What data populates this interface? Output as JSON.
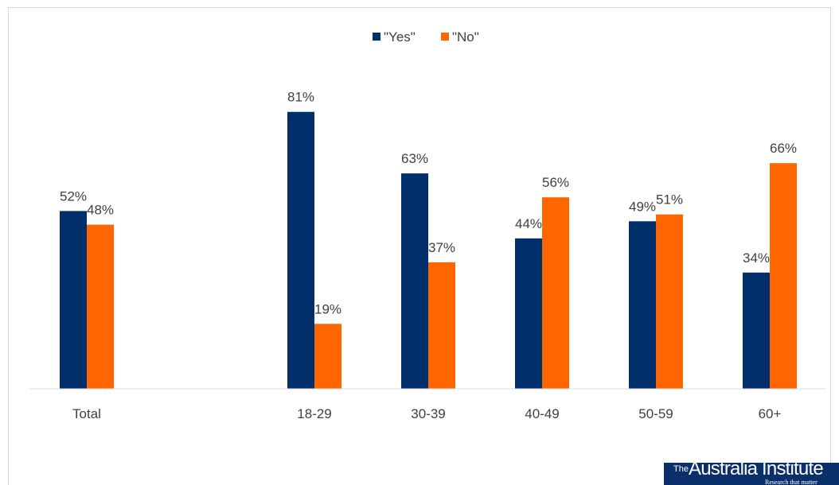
{
  "colors": {
    "yes": "#002f6c",
    "no": "#ff6600",
    "axis": "#d9d9d9",
    "text": "#404040",
    "logo_bg": "#0b2f6a"
  },
  "legend": {
    "position": "top-center"
  },
  "chart_data": {
    "type": "bar",
    "categories": [
      "Total",
      "",
      "18-29",
      "30-39",
      "40-49",
      "50-59",
      "60+"
    ],
    "series": [
      {
        "name": "\"Yes\"",
        "values": [
          52,
          null,
          81,
          63,
          44,
          49,
          34
        ],
        "color": "#002f6c"
      },
      {
        "name": "\"No\"",
        "values": [
          48,
          null,
          19,
          37,
          56,
          51,
          66
        ],
        "color": "#ff6600"
      }
    ],
    "data_labels": {
      "yes": [
        "52%",
        "",
        "81%",
        "63%",
        "44%",
        "49%",
        "34%"
      ],
      "no": [
        "48%",
        "",
        "19%",
        "37%",
        "56%",
        "51%",
        "66%"
      ]
    },
    "ylim": [
      0,
      100
    ],
    "grid": false,
    "title": "",
    "xlabel": "",
    "ylabel": ""
  },
  "logo": {
    "the": "The",
    "name": "Australia Institute",
    "tagline": "Research that matter"
  }
}
